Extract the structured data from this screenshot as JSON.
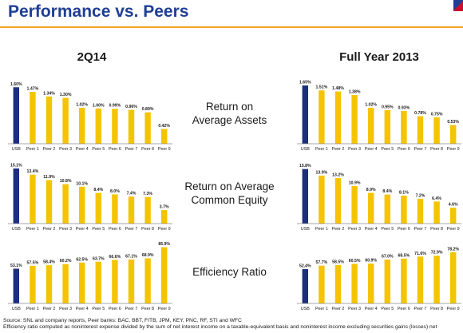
{
  "title": "Performance vs. Peers",
  "columns": {
    "left": "2Q14",
    "right": "Full Year 2013"
  },
  "metrics": [
    {
      "line1": "Return on",
      "line2": "Average Assets"
    },
    {
      "line1": "Return on Average",
      "line2": "Common Equity"
    },
    {
      "line1": "Efficiency Ratio",
      "line2": ""
    }
  ],
  "colors": {
    "usb": "#1b2f7e",
    "peer": "#f5c400",
    "title": "#1f3f94",
    "accent": "#f5a623"
  },
  "chart_data": [
    {
      "type": "bar",
      "ylim": [
        0,
        1.9
      ],
      "categories": [
        "USB",
        "Peer 1",
        "Peer 2",
        "Peer 3",
        "Peer 4",
        "Peer 5",
        "Peer 6",
        "Peer 7",
        "Peer 8",
        "Peer 9"
      ],
      "values": [
        1.6,
        1.47,
        1.34,
        1.3,
        1.02,
        1.0,
        0.99,
        0.96,
        0.89,
        0.42
      ],
      "labels": [
        "1.60%",
        "1.47%",
        "1.34%",
        "1.30%",
        "1.02%",
        "1.00%",
        "0.99%",
        "0.96%",
        "0.89%",
        "0.42%"
      ]
    },
    {
      "type": "bar",
      "ylim": [
        0,
        1.9
      ],
      "categories": [
        "USB",
        "Peer 1",
        "Peer 2",
        "Peer 3",
        "Peer 4",
        "Peer 5",
        "Peer 6",
        "Peer 7",
        "Peer 8",
        "Peer 9"
      ],
      "values": [
        1.65,
        1.51,
        1.48,
        1.38,
        1.02,
        0.95,
        0.93,
        0.78,
        0.75,
        0.53
      ],
      "labels": [
        "1.65%",
        "1.51%",
        "1.48%",
        "1.38%",
        "1.02%",
        "0.95%",
        "0.93%",
        "0.78%",
        "0.75%",
        "0.53%"
      ]
    },
    {
      "type": "bar",
      "ylim": [
        0,
        17.5
      ],
      "categories": [
        "USB",
        "Peer 1",
        "Peer 2",
        "Peer 3",
        "Peer 4",
        "Peer 5",
        "Peer 6",
        "Peer 7",
        "Peer 8",
        "Peer 9"
      ],
      "values": [
        15.1,
        13.4,
        11.9,
        10.8,
        10.1,
        8.4,
        8.0,
        7.4,
        7.3,
        3.7
      ],
      "labels": [
        "15.1%",
        "13.4%",
        "11.9%",
        "10.8%",
        "10.1%",
        "8.4%",
        "8.0%",
        "7.4%",
        "7.3%",
        "3.7%"
      ]
    },
    {
      "type": "bar",
      "ylim": [
        0,
        18.5
      ],
      "categories": [
        "USB",
        "Peer 1",
        "Peer 2",
        "Peer 3",
        "Peer 4",
        "Peer 5",
        "Peer 6",
        "Peer 7",
        "Peer 8",
        "Peer 9"
      ],
      "values": [
        15.8,
        13.9,
        13.2,
        10.9,
        8.9,
        8.4,
        8.1,
        7.2,
        6.4,
        4.6
      ],
      "labels": [
        "15.8%",
        "13.9%",
        "13.2%",
        "10.9%",
        "8.9%",
        "8.4%",
        "8.1%",
        "7.2%",
        "6.4%",
        "4.6%"
      ]
    },
    {
      "type": "bar",
      "ylim": [
        0,
        100
      ],
      "categories": [
        "USB",
        "Peer 1",
        "Peer 2",
        "Peer 3",
        "Peer 4",
        "Peer 5",
        "Peer 6",
        "Peer 7",
        "Peer 8",
        "Peer 9"
      ],
      "values": [
        53.1,
        57.5,
        58.4,
        60.2,
        62.5,
        63.7,
        66.6,
        67.1,
        68.9,
        85.9
      ],
      "labels": [
        "53.1%",
        "57.5%",
        "58.4%",
        "60.2%",
        "62.5%",
        "63.7%",
        "66.6%",
        "67.1%",
        "68.9%",
        "85.9%"
      ]
    },
    {
      "type": "bar",
      "ylim": [
        0,
        100
      ],
      "categories": [
        "USB",
        "Peer 1",
        "Peer 2",
        "Peer 3",
        "Peer 4",
        "Peer 5",
        "Peer 6",
        "Peer 7",
        "Peer 8",
        "Peer 9"
      ],
      "values": [
        52.4,
        57.7,
        58.5,
        60.5,
        60.9,
        67.0,
        68.5,
        71.6,
        72.9,
        78.2
      ],
      "labels": [
        "52.4%",
        "57.7%",
        "58.5%",
        "60.5%",
        "60.9%",
        "67.0%",
        "68.5%",
        "71.6%",
        "72.9%",
        "78.2%"
      ]
    }
  ],
  "footer": {
    "line1": "Source: SNL and company reports, Peer banks: BAC, BBT, FITB, JPM, KEY, PNC, RF, STI and WFC",
    "line2": "Efficiency ratio computed as noninterest expense divided by the sum of net interest income on a taxable-equivalent basis and noninterest income excluding securities gains (losses) net"
  }
}
